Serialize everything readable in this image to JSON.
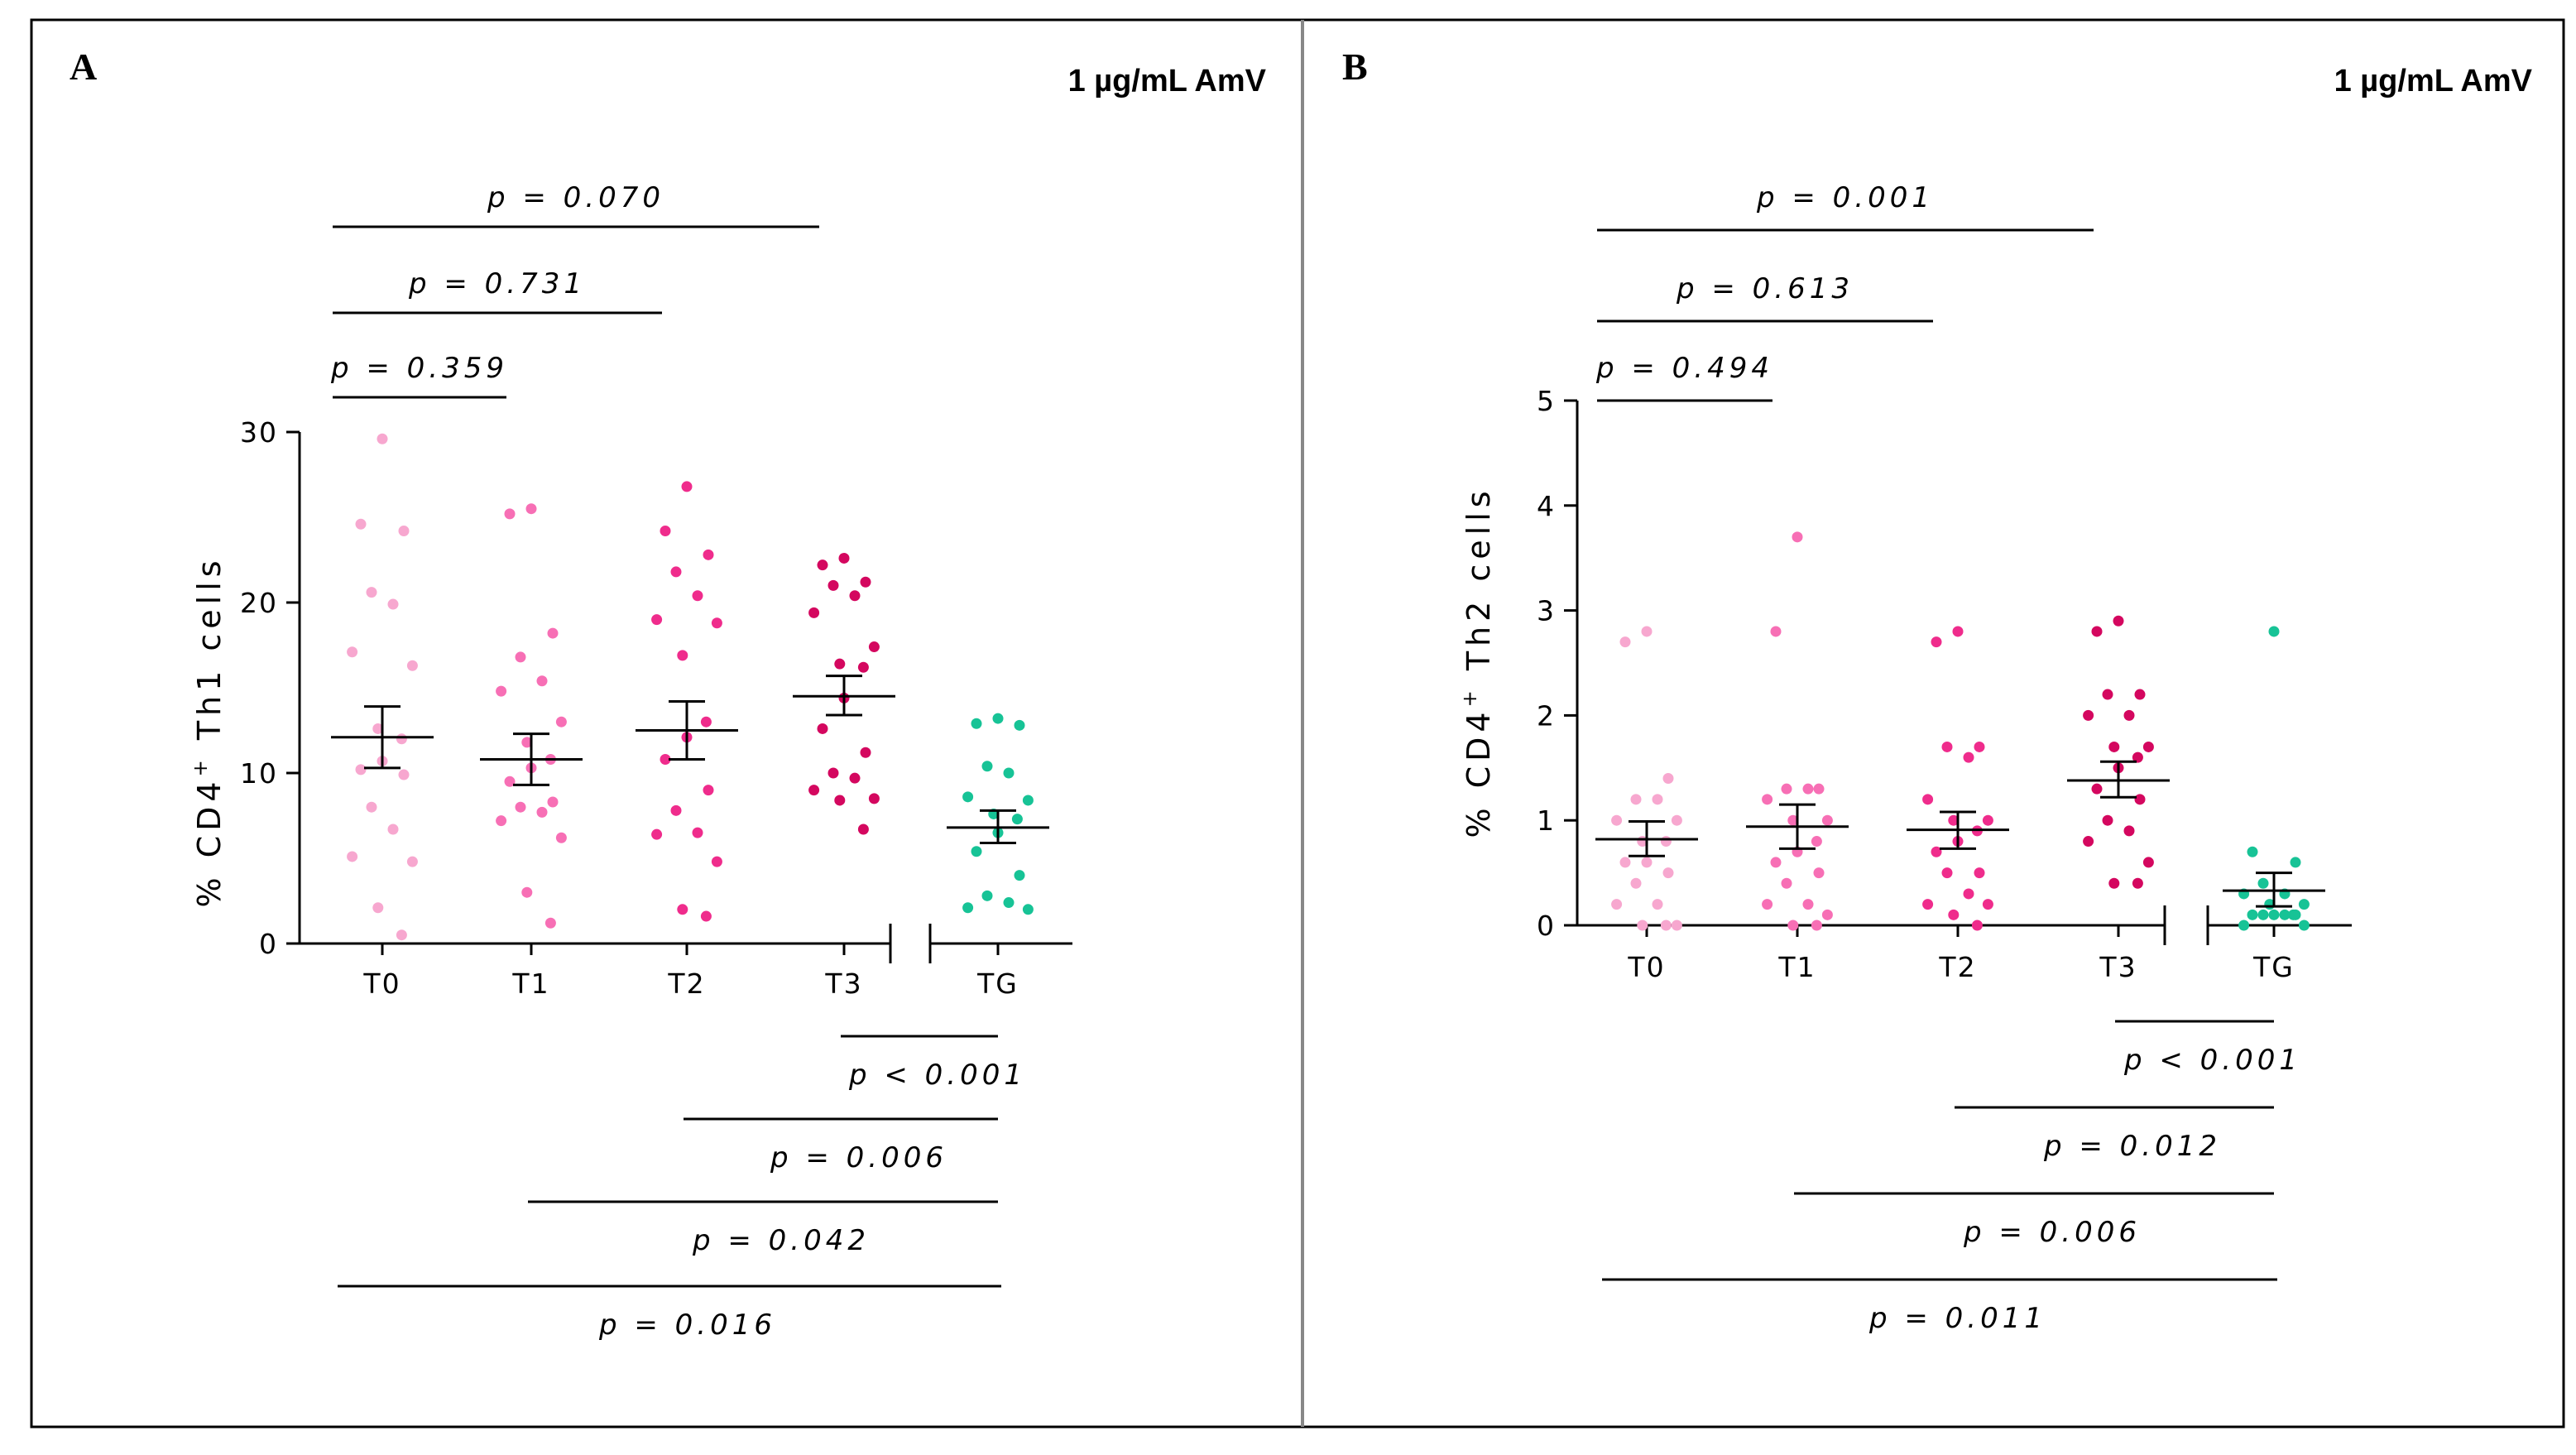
{
  "figure": {
    "colors": {
      "T0": "#f7a7cf",
      "T1": "#f76fb5",
      "T2": "#ef2c8c",
      "T3": "#d4075f",
      "TG": "#17c396",
      "ink": "#000000"
    }
  },
  "chart_data": [
    {
      "panel": "A",
      "type": "scatter",
      "annotation": "1 µg/mL AmV",
      "ylabel_prefix": "% CD4",
      "ylabel_sup": "+",
      "ylabel_suffix": " Th1 cells",
      "categories": [
        "T0",
        "T1",
        "T2",
        "T3",
        "TG"
      ],
      "ylim": [
        0,
        30
      ],
      "yticks": [
        0,
        10,
        20,
        30
      ],
      "grid": false,
      "axis_break": "between T3 and TG",
      "points": {
        "T0": [
          29.6,
          24.6,
          24.2,
          20.6,
          19.9,
          17.1,
          16.3,
          12.6,
          12.0,
          10.7,
          10.2,
          9.9,
          8.0,
          6.7,
          5.1,
          4.8,
          2.1,
          0.5
        ],
        "T1": [
          25.5,
          25.2,
          18.2,
          16.8,
          15.4,
          14.8,
          13.0,
          11.8,
          10.8,
          10.3,
          9.5,
          8.3,
          8.0,
          7.7,
          7.2,
          6.2,
          3.0,
          1.2
        ],
        "T2": [
          26.8,
          24.2,
          22.8,
          21.8,
          20.4,
          19.0,
          18.8,
          16.9,
          13.0,
          12.1,
          10.8,
          9.0,
          7.8,
          6.5,
          6.4,
          4.8,
          2.0,
          1.6
        ],
        "T3": [
          22.6,
          22.2,
          21.2,
          21.0,
          20.4,
          19.4,
          17.4,
          16.4,
          16.2,
          14.4,
          12.6,
          11.2,
          10.0,
          9.7,
          9.0,
          8.5,
          8.4,
          6.7
        ],
        "TG": [
          13.2,
          12.9,
          12.8,
          10.4,
          10.0,
          8.6,
          8.4,
          7.6,
          7.3,
          6.5,
          5.4,
          4.0,
          2.8,
          2.4,
          2.1,
          2.0
        ]
      },
      "mean": {
        "T0": 12.1,
        "T1": 10.8,
        "T2": 12.5,
        "T3": 14.5,
        "TG": 6.8
      },
      "sem_low": {
        "T0": 10.3,
        "T1": 9.3,
        "T2": 10.8,
        "T3": 13.4,
        "TG": 5.9
      },
      "sem_high": {
        "T0": 13.9,
        "T1": 12.3,
        "T2": 14.2,
        "T3": 15.7,
        "TG": 7.8
      },
      "comparisons": [
        {
          "from": "T0",
          "to": "T3",
          "label": "p = 0.070",
          "side": "top",
          "level": 3
        },
        {
          "from": "T0",
          "to": "T2",
          "label": "p = 0.731",
          "side": "top",
          "level": 2
        },
        {
          "from": "T0",
          "to": "T1",
          "label": "p = 0.359",
          "side": "top",
          "level": 1
        },
        {
          "from": "T3",
          "to": "TG",
          "label": "p < 0.001",
          "side": "bottom",
          "level": 1
        },
        {
          "from": "T2",
          "to": "TG",
          "label": "p = 0.006",
          "side": "bottom",
          "level": 2
        },
        {
          "from": "T1",
          "to": "TG",
          "label": "p = 0.042",
          "side": "bottom",
          "level": 3
        },
        {
          "from": "T0",
          "to": "TG",
          "label": "p = 0.016",
          "side": "bottom",
          "level": 4
        }
      ]
    },
    {
      "panel": "B",
      "type": "scatter",
      "annotation": "1 µg/mL AmV",
      "ylabel_prefix": "% CD4",
      "ylabel_sup": "+",
      "ylabel_suffix": " Th2 cells",
      "categories": [
        "T0",
        "T1",
        "T2",
        "T3",
        "TG"
      ],
      "ylim": [
        0,
        5
      ],
      "yticks": [
        0,
        1,
        2,
        3,
        4,
        5
      ],
      "grid": false,
      "axis_break": "between T3 and TG",
      "points": {
        "T0": [
          2.8,
          2.7,
          1.4,
          1.2,
          1.2,
          1.0,
          1.0,
          0.8,
          0.8,
          0.6,
          0.6,
          0.5,
          0.4,
          0.2,
          0.2,
          0.0,
          0.0,
          0.0
        ],
        "T1": [
          3.7,
          2.8,
          1.3,
          1.3,
          1.3,
          1.2,
          1.0,
          1.0,
          0.8,
          0.7,
          0.6,
          0.5,
          0.4,
          0.2,
          0.2,
          0.1,
          0.0,
          0.0
        ],
        "T2": [
          2.8,
          2.7,
          1.7,
          1.7,
          1.6,
          1.2,
          1.0,
          1.0,
          0.9,
          0.8,
          0.7,
          0.5,
          0.5,
          0.3,
          0.2,
          0.2,
          0.1,
          0.0
        ],
        "T3": [
          2.9,
          2.8,
          2.2,
          2.2,
          2.0,
          2.0,
          1.7,
          1.7,
          1.6,
          1.5,
          1.3,
          1.2,
          1.0,
          0.9,
          0.8,
          0.6,
          0.4,
          0.4
        ],
        "TG": [
          2.8,
          0.7,
          0.6,
          0.4,
          0.3,
          0.3,
          0.2,
          0.2,
          0.1,
          0.1,
          0.1,
          0.1,
          0.1,
          0.1,
          0.0,
          0.0
        ]
      },
      "mean": {
        "T0": 0.82,
        "T1": 0.94,
        "T2": 0.91,
        "T3": 1.38,
        "TG": 0.33
      },
      "sem_low": {
        "T0": 0.66,
        "T1": 0.73,
        "T2": 0.73,
        "T3": 1.22,
        "TG": 0.18
      },
      "sem_high": {
        "T0": 0.99,
        "T1": 1.15,
        "T2": 1.08,
        "T3": 1.56,
        "TG": 0.5
      },
      "comparisons": [
        {
          "from": "T0",
          "to": "T3",
          "label": "p = 0.001",
          "side": "top",
          "level": 3
        },
        {
          "from": "T0",
          "to": "T2",
          "label": "p = 0.613",
          "side": "top",
          "level": 2
        },
        {
          "from": "T0",
          "to": "T1",
          "label": "p = 0.494",
          "side": "top",
          "level": 1
        },
        {
          "from": "T3",
          "to": "TG",
          "label": "p < 0.001",
          "side": "bottom",
          "level": 1
        },
        {
          "from": "T2",
          "to": "TG",
          "label": "p = 0.012",
          "side": "bottom",
          "level": 2
        },
        {
          "from": "T1",
          "to": "TG",
          "label": "p = 0.006",
          "side": "bottom",
          "level": 3
        },
        {
          "from": "T0",
          "to": "TG",
          "label": "p = 0.011",
          "side": "bottom",
          "level": 4
        }
      ]
    }
  ]
}
